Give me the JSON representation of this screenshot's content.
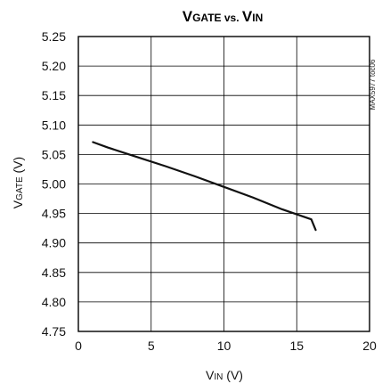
{
  "chart_data": {
    "type": "line",
    "title": {
      "main": "V",
      "main_sub": "GATE",
      "vs": " vs. ",
      "v2": "V",
      "v2_sub": "IN"
    },
    "xlabel": {
      "main": "V",
      "sub": "IN",
      "unit": " (V)"
    },
    "ylabel": {
      "main": "V",
      "sub": "GATE",
      "unit": " (V)"
    },
    "xlim": [
      0,
      20
    ],
    "ylim": [
      4.75,
      5.25
    ],
    "xticks": [
      {
        "value": 0,
        "label": "0"
      },
      {
        "value": 5,
        "label": "5"
      },
      {
        "value": 10,
        "label": "10"
      },
      {
        "value": 15,
        "label": "15"
      },
      {
        "value": 20,
        "label": "20"
      }
    ],
    "yticks": [
      {
        "value": 4.75,
        "label": "4.75"
      },
      {
        "value": 4.8,
        "label": "4.80"
      },
      {
        "value": 4.85,
        "label": "4.85"
      },
      {
        "value": 4.9,
        "label": "4.90"
      },
      {
        "value": 4.95,
        "label": "4.95"
      },
      {
        "value": 5.0,
        "label": "5.00"
      },
      {
        "value": 5.05,
        "label": "5.05"
      },
      {
        "value": 5.1,
        "label": "5.10"
      },
      {
        "value": 5.15,
        "label": "5.15"
      },
      {
        "value": 5.2,
        "label": "5.20"
      },
      {
        "value": 5.25,
        "label": "5.25"
      }
    ],
    "grid": true,
    "legend": "none",
    "watermark": "MAX5977 toc06",
    "series": [
      {
        "color": "#111111",
        "points": [
          {
            "x": 1,
            "y": 5.071
          },
          {
            "x": 2,
            "y": 5.062
          },
          {
            "x": 3.5,
            "y": 5.05
          },
          {
            "x": 6,
            "y": 5.03
          },
          {
            "x": 8,
            "y": 5.013
          },
          {
            "x": 10,
            "y": 4.995
          },
          {
            "x": 12,
            "y": 4.977
          },
          {
            "x": 14,
            "y": 4.957
          },
          {
            "x": 16,
            "y": 4.94
          },
          {
            "x": 16.3,
            "y": 4.922
          }
        ]
      }
    ]
  }
}
